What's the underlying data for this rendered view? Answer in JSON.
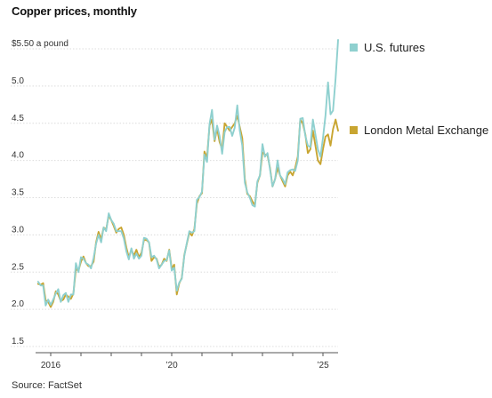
{
  "chart_data": {
    "type": "line",
    "title": "Copper prices, monthly",
    "source": "Source: FactSet",
    "y_unit_label": "$5.50 a pound",
    "ylim": [
      1.5,
      5.5
    ],
    "y_ticks": [
      {
        "value": 5.5,
        "label": "$5.50 a pound"
      },
      {
        "value": 5.0,
        "label": "5.0"
      },
      {
        "value": 4.5,
        "label": "4.5"
      },
      {
        "value": 4.0,
        "label": "4.0"
      },
      {
        "value": 3.5,
        "label": "3.5"
      },
      {
        "value": 3.0,
        "label": "3.0"
      },
      {
        "value": 2.5,
        "label": "2.5"
      },
      {
        "value": 2.0,
        "label": "2.0"
      },
      {
        "value": 1.5,
        "label": "1.5"
      }
    ],
    "xlim": [
      "2015-07",
      "2025-07"
    ],
    "x_ticks": [
      {
        "date": "2016-01",
        "label": "2016"
      },
      {
        "date": "2017-01",
        "label": ""
      },
      {
        "date": "2018-01",
        "label": ""
      },
      {
        "date": "2019-01",
        "label": ""
      },
      {
        "date": "2020-01",
        "label": "’20"
      },
      {
        "date": "2021-01",
        "label": ""
      },
      {
        "date": "2022-01",
        "label": ""
      },
      {
        "date": "2023-01",
        "label": ""
      },
      {
        "date": "2024-01",
        "label": ""
      },
      {
        "date": "2025-01",
        "label": "’25"
      }
    ],
    "grid": true,
    "legend_position": "right",
    "series": [
      {
        "name": "London Metal Exchange",
        "color": "#c8a531",
        "points": [
          [
            "2015-08",
            2.34
          ],
          [
            "2015-09",
            2.33
          ],
          [
            "2015-10",
            2.35
          ],
          [
            "2015-11",
            2.12
          ],
          [
            "2015-12",
            2.1
          ],
          [
            "2016-01",
            2.03
          ],
          [
            "2016-02",
            2.1
          ],
          [
            "2016-03",
            2.24
          ],
          [
            "2016-04",
            2.2
          ],
          [
            "2016-05",
            2.11
          ],
          [
            "2016-06",
            2.13
          ],
          [
            "2016-07",
            2.2
          ],
          [
            "2016-08",
            2.17
          ],
          [
            "2016-09",
            2.14
          ],
          [
            "2016-10",
            2.21
          ],
          [
            "2016-11",
            2.54
          ],
          [
            "2016-12",
            2.52
          ],
          [
            "2017-01",
            2.64
          ],
          [
            "2017-02",
            2.71
          ],
          [
            "2017-03",
            2.62
          ],
          [
            "2017-04",
            2.58
          ],
          [
            "2017-05",
            2.58
          ],
          [
            "2017-06",
            2.64
          ],
          [
            "2017-07",
            2.9
          ],
          [
            "2017-08",
            3.04
          ],
          [
            "2017-09",
            2.94
          ],
          [
            "2017-10",
            3.1
          ],
          [
            "2017-11",
            3.07
          ],
          [
            "2017-12",
            3.26
          ],
          [
            "2018-01",
            3.2
          ],
          [
            "2018-02",
            3.12
          ],
          [
            "2018-03",
            3.03
          ],
          [
            "2018-04",
            3.08
          ],
          [
            "2018-05",
            3.1
          ],
          [
            "2018-06",
            3.0
          ],
          [
            "2018-07",
            2.83
          ],
          [
            "2018-08",
            2.7
          ],
          [
            "2018-09",
            2.8
          ],
          [
            "2018-10",
            2.72
          ],
          [
            "2018-11",
            2.8
          ],
          [
            "2018-12",
            2.7
          ],
          [
            "2019-01",
            2.76
          ],
          [
            "2019-02",
            2.93
          ],
          [
            "2019-03",
            2.93
          ],
          [
            "2019-04",
            2.9
          ],
          [
            "2019-05",
            2.65
          ],
          [
            "2019-06",
            2.7
          ],
          [
            "2019-07",
            2.68
          ],
          [
            "2019-08",
            2.57
          ],
          [
            "2019-09",
            2.6
          ],
          [
            "2019-10",
            2.68
          ],
          [
            "2019-11",
            2.65
          ],
          [
            "2019-12",
            2.8
          ],
          [
            "2020-01",
            2.55
          ],
          [
            "2020-02",
            2.6
          ],
          [
            "2020-03",
            2.2
          ],
          [
            "2020-04",
            2.35
          ],
          [
            "2020-05",
            2.42
          ],
          [
            "2020-06",
            2.73
          ],
          [
            "2020-07",
            2.88
          ],
          [
            "2020-08",
            3.03
          ],
          [
            "2020-09",
            2.99
          ],
          [
            "2020-10",
            3.08
          ],
          [
            "2020-11",
            3.42
          ],
          [
            "2020-12",
            3.52
          ],
          [
            "2021-01",
            3.56
          ],
          [
            "2021-02",
            4.12
          ],
          [
            "2021-03",
            4.04
          ],
          [
            "2021-04",
            4.47
          ],
          [
            "2021-05",
            4.55
          ],
          [
            "2021-06",
            4.26
          ],
          [
            "2021-07",
            4.43
          ],
          [
            "2021-08",
            4.25
          ],
          [
            "2021-09",
            4.15
          ],
          [
            "2021-10",
            4.5
          ],
          [
            "2021-11",
            4.45
          ],
          [
            "2021-12",
            4.4
          ],
          [
            "2022-01",
            4.45
          ],
          [
            "2022-02",
            4.5
          ],
          [
            "2022-03",
            4.6
          ],
          [
            "2022-04",
            4.45
          ],
          [
            "2022-05",
            4.3
          ],
          [
            "2022-06",
            3.75
          ],
          [
            "2022-07",
            3.55
          ],
          [
            "2022-08",
            3.52
          ],
          [
            "2022-09",
            3.45
          ],
          [
            "2022-10",
            3.4
          ],
          [
            "2022-11",
            3.7
          ],
          [
            "2022-12",
            3.8
          ],
          [
            "2023-01",
            4.11
          ],
          [
            "2023-02",
            4.08
          ],
          [
            "2023-03",
            4.07
          ],
          [
            "2023-04",
            3.9
          ],
          [
            "2023-05",
            3.65
          ],
          [
            "2023-06",
            3.75
          ],
          [
            "2023-07",
            3.9
          ],
          [
            "2023-08",
            3.8
          ],
          [
            "2023-09",
            3.72
          ],
          [
            "2023-10",
            3.65
          ],
          [
            "2023-11",
            3.8
          ],
          [
            "2023-12",
            3.85
          ],
          [
            "2024-01",
            3.8
          ],
          [
            "2024-02",
            3.9
          ],
          [
            "2024-03",
            4.05
          ],
          [
            "2024-04",
            4.55
          ],
          [
            "2024-05",
            4.5
          ],
          [
            "2024-06",
            4.35
          ],
          [
            "2024-07",
            4.1
          ],
          [
            "2024-08",
            4.15
          ],
          [
            "2024-09",
            4.4
          ],
          [
            "2024-10",
            4.2
          ],
          [
            "2024-11",
            4.0
          ],
          [
            "2024-12",
            3.95
          ],
          [
            "2025-01",
            4.15
          ],
          [
            "2025-02",
            4.32
          ],
          [
            "2025-03",
            4.35
          ],
          [
            "2025-04",
            4.2
          ],
          [
            "2025-05",
            4.42
          ],
          [
            "2025-06",
            4.55
          ],
          [
            "2025-07",
            4.4
          ]
        ]
      },
      {
        "name": "U.S. futures",
        "color": "#8fd0cf",
        "points": [
          [
            "2015-08",
            2.37
          ],
          [
            "2015-09",
            2.32
          ],
          [
            "2015-10",
            2.32
          ],
          [
            "2015-11",
            2.05
          ],
          [
            "2015-12",
            2.13
          ],
          [
            "2016-01",
            2.06
          ],
          [
            "2016-02",
            2.13
          ],
          [
            "2016-03",
            2.21
          ],
          [
            "2016-04",
            2.27
          ],
          [
            "2016-05",
            2.1
          ],
          [
            "2016-06",
            2.19
          ],
          [
            "2016-07",
            2.22
          ],
          [
            "2016-08",
            2.1
          ],
          [
            "2016-09",
            2.2
          ],
          [
            "2016-10",
            2.2
          ],
          [
            "2016-11",
            2.62
          ],
          [
            "2016-12",
            2.5
          ],
          [
            "2017-01",
            2.7
          ],
          [
            "2017-02",
            2.68
          ],
          [
            "2017-03",
            2.62
          ],
          [
            "2017-04",
            2.6
          ],
          [
            "2017-05",
            2.55
          ],
          [
            "2017-06",
            2.69
          ],
          [
            "2017-07",
            2.88
          ],
          [
            "2017-08",
            3.0
          ],
          [
            "2017-09",
            2.9
          ],
          [
            "2017-10",
            3.1
          ],
          [
            "2017-11",
            3.05
          ],
          [
            "2017-12",
            3.29
          ],
          [
            "2018-01",
            3.2
          ],
          [
            "2018-02",
            3.15
          ],
          [
            "2018-03",
            3.05
          ],
          [
            "2018-04",
            3.05
          ],
          [
            "2018-05",
            3.05
          ],
          [
            "2018-06",
            2.95
          ],
          [
            "2018-07",
            2.78
          ],
          [
            "2018-08",
            2.67
          ],
          [
            "2018-09",
            2.82
          ],
          [
            "2018-10",
            2.68
          ],
          [
            "2018-11",
            2.75
          ],
          [
            "2018-12",
            2.68
          ],
          [
            "2019-01",
            2.72
          ],
          [
            "2019-02",
            2.96
          ],
          [
            "2019-03",
            2.95
          ],
          [
            "2019-04",
            2.9
          ],
          [
            "2019-05",
            2.7
          ],
          [
            "2019-06",
            2.72
          ],
          [
            "2019-07",
            2.67
          ],
          [
            "2019-08",
            2.55
          ],
          [
            "2019-09",
            2.6
          ],
          [
            "2019-10",
            2.65
          ],
          [
            "2019-11",
            2.66
          ],
          [
            "2019-12",
            2.79
          ],
          [
            "2020-01",
            2.52
          ],
          [
            "2020-02",
            2.56
          ],
          [
            "2020-03",
            2.25
          ],
          [
            "2020-04",
            2.36
          ],
          [
            "2020-05",
            2.41
          ],
          [
            "2020-06",
            2.72
          ],
          [
            "2020-07",
            2.89
          ],
          [
            "2020-08",
            3.05
          ],
          [
            "2020-09",
            3.03
          ],
          [
            "2020-10",
            3.05
          ],
          [
            "2020-11",
            3.47
          ],
          [
            "2020-12",
            3.51
          ],
          [
            "2021-01",
            3.58
          ],
          [
            "2021-02",
            4.08
          ],
          [
            "2021-03",
            3.98
          ],
          [
            "2021-04",
            4.49
          ],
          [
            "2021-05",
            4.68
          ],
          [
            "2021-06",
            4.28
          ],
          [
            "2021-07",
            4.47
          ],
          [
            "2021-08",
            4.33
          ],
          [
            "2021-09",
            4.09
          ],
          [
            "2021-10",
            4.38
          ],
          [
            "2021-11",
            4.45
          ],
          [
            "2021-12",
            4.45
          ],
          [
            "2022-01",
            4.33
          ],
          [
            "2022-02",
            4.44
          ],
          [
            "2022-03",
            4.74
          ],
          [
            "2022-04",
            4.4
          ],
          [
            "2022-05",
            4.2
          ],
          [
            "2022-06",
            3.7
          ],
          [
            "2022-07",
            3.57
          ],
          [
            "2022-08",
            3.5
          ],
          [
            "2022-09",
            3.4
          ],
          [
            "2022-10",
            3.38
          ],
          [
            "2022-11",
            3.72
          ],
          [
            "2022-12",
            3.8
          ],
          [
            "2023-01",
            4.22
          ],
          [
            "2023-02",
            4.05
          ],
          [
            "2023-03",
            4.1
          ],
          [
            "2023-04",
            3.88
          ],
          [
            "2023-05",
            3.65
          ],
          [
            "2023-06",
            3.75
          ],
          [
            "2023-07",
            4.0
          ],
          [
            "2023-08",
            3.8
          ],
          [
            "2023-09",
            3.75
          ],
          [
            "2023-10",
            3.68
          ],
          [
            "2023-11",
            3.84
          ],
          [
            "2023-12",
            3.87
          ],
          [
            "2024-01",
            3.88
          ],
          [
            "2024-02",
            3.86
          ],
          [
            "2024-03",
            4.0
          ],
          [
            "2024-04",
            4.56
          ],
          [
            "2024-05",
            4.57
          ],
          [
            "2024-06",
            4.33
          ],
          [
            "2024-07",
            4.2
          ],
          [
            "2024-08",
            4.18
          ],
          [
            "2024-09",
            4.55
          ],
          [
            "2024-10",
            4.35
          ],
          [
            "2024-11",
            4.15
          ],
          [
            "2024-12",
            4.05
          ],
          [
            "2025-01",
            4.3
          ],
          [
            "2025-02",
            4.6
          ],
          [
            "2025-03",
            5.05
          ],
          [
            "2025-04",
            4.62
          ],
          [
            "2025-05",
            4.67
          ],
          [
            "2025-06",
            5.1
          ],
          [
            "2025-07",
            5.62
          ]
        ]
      }
    ]
  }
}
